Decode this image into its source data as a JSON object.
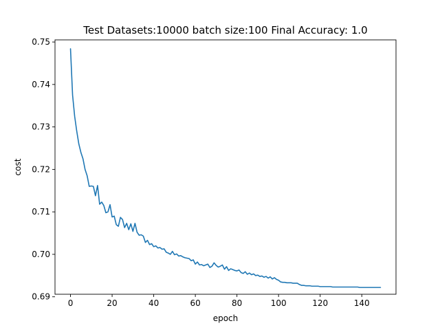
{
  "chart_data": {
    "type": "line",
    "title": "Test Datasets:10000 batch size:100 Final Accuracy: 1.0",
    "xlabel": "epoch",
    "ylabel": "cost",
    "xlim": [
      -7.45,
      156.45
    ],
    "ylim": [
      0.6906,
      0.7505
    ],
    "x_ticks": [
      0,
      20,
      40,
      60,
      80,
      100,
      120,
      140
    ],
    "x_tick_labels": [
      "0",
      "20",
      "40",
      "60",
      "80",
      "100",
      "120",
      "140"
    ],
    "y_ticks": [
      0.69,
      0.7,
      0.71,
      0.72,
      0.73,
      0.74,
      0.75
    ],
    "y_tick_labels": [
      "0.69",
      "0.70",
      "0.71",
      "0.72",
      "0.73",
      "0.74",
      "0.75"
    ],
    "grid": false,
    "series": [
      {
        "color": "#1f77b4",
        "values": [
          0.7484,
          0.7375,
          0.7325,
          0.729,
          0.726,
          0.724,
          0.7225,
          0.72,
          0.7185,
          0.716,
          0.7161,
          0.716,
          0.7138,
          0.7162,
          0.7118,
          0.7123,
          0.7115,
          0.7098,
          0.71,
          0.7117,
          0.7088,
          0.709,
          0.707,
          0.7066,
          0.7087,
          0.7082,
          0.7063,
          0.7073,
          0.7058,
          0.7072,
          0.7054,
          0.7073,
          0.7052,
          0.7045,
          0.7046,
          0.7043,
          0.7028,
          0.7033,
          0.7023,
          0.7025,
          0.7018,
          0.702,
          0.7015,
          0.7016,
          0.7012,
          0.7013,
          0.7005,
          0.7003,
          0.7,
          0.7007,
          0.6999,
          0.7001,
          0.6996,
          0.6997,
          0.6994,
          0.6992,
          0.6991,
          0.699,
          0.6985,
          0.6987,
          0.6977,
          0.6982,
          0.6975,
          0.6976,
          0.6973,
          0.6975,
          0.6977,
          0.6969,
          0.6972,
          0.698,
          0.6974,
          0.697,
          0.6972,
          0.6975,
          0.6965,
          0.6971,
          0.6962,
          0.6966,
          0.6964,
          0.6962,
          0.6961,
          0.6963,
          0.6957,
          0.6955,
          0.6959,
          0.6953,
          0.6956,
          0.6952,
          0.6954,
          0.695,
          0.6951,
          0.6948,
          0.6949,
          0.6946,
          0.6948,
          0.6944,
          0.6947,
          0.6942,
          0.6945,
          0.6941,
          0.6939,
          0.6935,
          0.6934,
          0.6934,
          0.6933,
          0.6933,
          0.6933,
          0.6932,
          0.6932,
          0.6932,
          0.6929,
          0.6927,
          0.6927,
          0.6926,
          0.6926,
          0.6926,
          0.6925,
          0.6925,
          0.6925,
          0.6925,
          0.6924,
          0.6924,
          0.6924,
          0.6924,
          0.6924,
          0.6924,
          0.6923,
          0.6923,
          0.6923,
          0.6923,
          0.6923,
          0.6923,
          0.6923,
          0.6923,
          0.6923,
          0.6923,
          0.6923,
          0.6923,
          0.6923,
          0.6922,
          0.6922,
          0.6922,
          0.6922,
          0.6922,
          0.6922,
          0.6922,
          0.6922,
          0.6922,
          0.6922,
          0.6922
        ]
      }
    ]
  }
}
